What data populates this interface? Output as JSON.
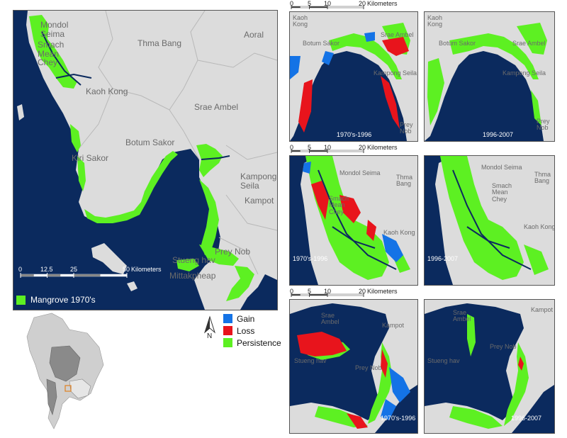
{
  "main_map": {
    "places": [
      "Mondol Seima",
      "Smach Mean Chey",
      "Thma Bang",
      "Aoral",
      "Kaoh Kong",
      "Srae Ambel",
      "Botum Sakor",
      "Kiri Sakor",
      "Kampong Seila",
      "Kampot",
      "Prey Nob",
      "Stueng hav",
      "Mittakpheap"
    ],
    "scale": {
      "ticks": [
        "0",
        "12.5",
        "25",
        "50"
      ],
      "unit": "Kilometers"
    },
    "legend_label": "Mangrove 1970's",
    "legend_color": "#5df022"
  },
  "north_arrow": {
    "label": "N"
  },
  "change_legend": {
    "items": [
      {
        "label": "Gain",
        "color": "#1473e6"
      },
      {
        "label": "Loss",
        "color": "#e8141c"
      },
      {
        "label": "Persistence",
        "color": "#5df022"
      }
    ]
  },
  "panels": {
    "row1": {
      "scale": {
        "ticks": [
          "0",
          "5",
          "10",
          "20"
        ],
        "unit": "Kilometers"
      },
      "left": {
        "period": "1970's-1996",
        "places": [
          "Kaoh Kong",
          "Botum Sakor",
          "Srae Ambel",
          "Kampong Seila",
          "Prey Nob"
        ]
      },
      "right": {
        "period": "1996-2007",
        "places": [
          "Kaoh Kong",
          "Botum Sakor",
          "Srae Ambel",
          "Kampong Seila",
          "Prey Nob"
        ]
      }
    },
    "row2": {
      "scale": {
        "ticks": [
          "0",
          "5",
          "10",
          "20"
        ],
        "unit": "Kilometers"
      },
      "left": {
        "period": "1970's-1996",
        "places": [
          "Mondol Seima",
          "Thma Bang",
          "Smach Mean Chey",
          "Kaoh Kong"
        ]
      },
      "right": {
        "period": "1996-2007",
        "places": [
          "Mondol Seima",
          "Thma Bang",
          "Smach Mean Chey",
          "Kaoh Kong"
        ]
      }
    },
    "row3": {
      "scale": {
        "ticks": [
          "0",
          "5",
          "10",
          "20"
        ],
        "unit": "Kilometers"
      },
      "left": {
        "period": "1970's-1996",
        "places": [
          "Srae Ambel",
          "Kampot",
          "Prey Nob",
          "Stueng hav"
        ]
      },
      "right": {
        "period": "1996-2007",
        "places": [
          "Srae Ambel",
          "Kampot",
          "Prey Nob",
          "Stueng hav"
        ]
      }
    }
  },
  "colors": {
    "sea": "#0b2a5e",
    "land": "#dcdcdc",
    "boundary": "#b0b0b0"
  }
}
